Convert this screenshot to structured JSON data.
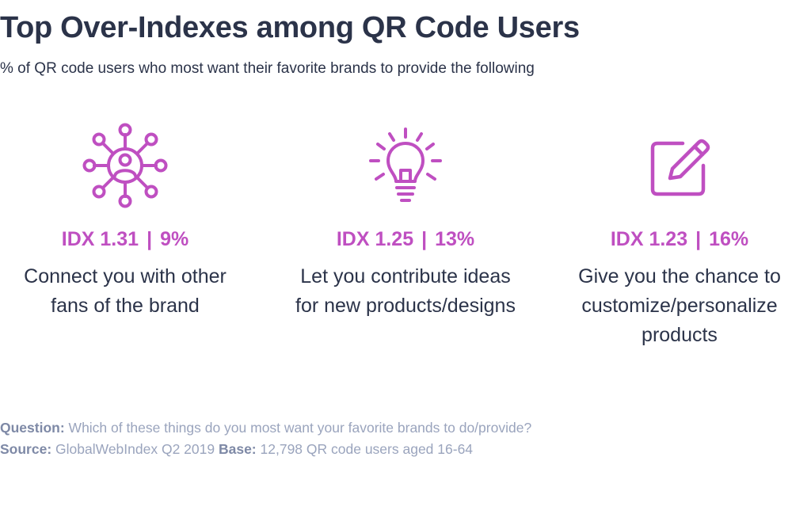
{
  "title": "Top Over-Indexes among QR Code Users",
  "subtitle": "% of QR code users who most want their favorite brands to provide the following",
  "accent_color": "#bf4fc1",
  "items": [
    {
      "icon": "network-user-icon",
      "idx": "IDX 1.31",
      "separator": "|",
      "percent": "9%",
      "line1": "Connect you with other",
      "line2": "fans of the brand",
      "line3": ""
    },
    {
      "icon": "lightbulb-icon",
      "idx": "IDX 1.25",
      "separator": "|",
      "percent": "13%",
      "line1": "Let you contribute ideas",
      "line2": "for new products/designs",
      "line3": ""
    },
    {
      "icon": "edit-pencil-icon",
      "idx": "IDX 1.23",
      "separator": "|",
      "percent": "16%",
      "line1": "Give you the chance to",
      "line2": "customize/personalize",
      "line3": "products"
    }
  ],
  "footer": {
    "question_label": "Question:",
    "question_text": "Which of these things do you most want your favorite brands to do/provide?",
    "source_label": "Source:",
    "source_text": "GlobalWebIndex Q2 2019",
    "base_label": "Base:",
    "base_text": "12,798 QR code users aged 16-64"
  }
}
